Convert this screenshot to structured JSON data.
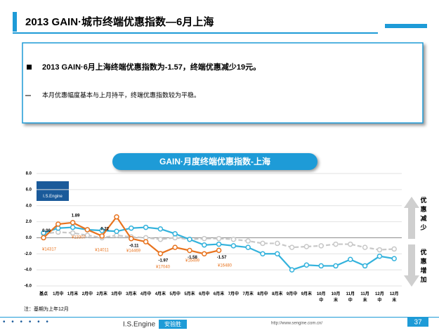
{
  "header": {
    "title": "2013 GAIN·城市终端优惠指数—6月上海"
  },
  "summary": {
    "headline": "2013 GAIN·6月上海终端优惠指数为-1.57，终端优惠减少19元。",
    "detail": "本月优惠幅度基本与上月持平，终端优惠指数较为平稳。"
  },
  "chart_data": {
    "type": "line",
    "title": "GAIN·月度终端优惠指数-上海",
    "categories": [
      "基点",
      "1月中",
      "1月末",
      "2月中",
      "2月末",
      "3月中",
      "3月末",
      "4月中",
      "4月末",
      "5月中",
      "5月末",
      "6月中",
      "6月末",
      "7月中",
      "7月末",
      "8月中",
      "8月末",
      "9月中",
      "9月末",
      "10月中",
      "10月末",
      "11月中",
      "11月末",
      "12月中",
      "12月末"
    ],
    "ylim": [
      -6,
      8
    ],
    "yticks": [
      {
        "value": -6,
        "label": "-6.0"
      },
      {
        "value": -4,
        "label": "-4.0"
      },
      {
        "value": -2,
        "label": "-2.0"
      },
      {
        "value": 0,
        "label": "0.0"
      },
      {
        "value": 2,
        "label": "2.0"
      },
      {
        "value": 4,
        "label": "4.0"
      },
      {
        "value": 6,
        "label": "6.0"
      },
      {
        "value": 8,
        "label": "8.0"
      }
    ],
    "grid": true,
    "series": [
      {
        "color": "#c8c8c8",
        "values": [
          0.5,
          0.7,
          0.6,
          0.3,
          0.0,
          0.3,
          0.1,
          0.0,
          -0.2,
          0.0,
          -0.2,
          -0.1,
          -0.1,
          -0.2,
          -0.4,
          -0.7,
          -0.7,
          -1.2,
          -1.1,
          -1.0,
          -0.8,
          -0.8,
          -1.2,
          -1.5,
          -1.4
        ]
      },
      {
        "color": "#33b2dc",
        "values": [
          0.6,
          1.2,
          1.3,
          1.0,
          0.9,
          0.8,
          1.2,
          1.3,
          1.1,
          0.5,
          -0.2,
          -0.9,
          -0.8,
          -1.0,
          -1.2,
          -2.0,
          -2.0,
          -4.0,
          -3.4,
          -3.5,
          -3.5,
          -2.7,
          -3.5,
          -2.3,
          -2.6
        ]
      },
      {
        "color": "#e8731e",
        "values": [
          0.0,
          1.7,
          1.89,
          1.0,
          0.22,
          2.6,
          -0.11,
          -0.5,
          -1.97,
          -1.2,
          -1.58,
          -2.0,
          -1.57,
          null,
          null,
          null,
          null,
          null,
          null,
          null,
          null,
          null,
          null,
          null,
          null
        ],
        "value_labels": [
          "0.00",
          null,
          "1.89",
          null,
          "0.22",
          null,
          "-0.11",
          null,
          "-1.97",
          null,
          "-1.58",
          null,
          "-1.57",
          null,
          null,
          null,
          null,
          null,
          null,
          null,
          null,
          null,
          null,
          null,
          null
        ]
      }
    ],
    "annotations": [
      "¥14317",
      "¥13307",
      "¥14011",
      "¥14469",
      "¥17040",
      "¥16499",
      "¥16480"
    ],
    "side_labels": [
      "优惠减少",
      "优惠增加"
    ],
    "logo": "I.S.Engine",
    "note": "注：基期为上年12月"
  },
  "footer": {
    "brand": "I.S.Engine",
    "badge": "安验胜",
    "url": "http://www.sengine.com.cn/",
    "page": "37"
  }
}
